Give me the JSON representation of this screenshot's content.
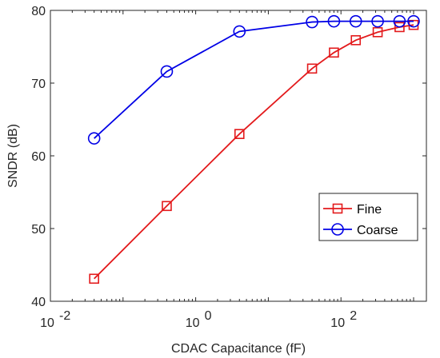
{
  "chart_data": {
    "type": "line",
    "title": "",
    "xlabel": "CDAC Capacitance (fF)",
    "ylabel": "SNDR (dB)",
    "xscale": "log",
    "xlim": [
      0.01,
      1500
    ],
    "ylim": [
      40,
      80
    ],
    "xticks": [
      {
        "value": 0.01,
        "base": "10",
        "exp": "-2"
      },
      {
        "value": 1,
        "base": "10",
        "exp": "0"
      },
      {
        "value": 100,
        "base": "10",
        "exp": "2"
      }
    ],
    "yticks": [
      40,
      50,
      60,
      70,
      80
    ],
    "grid": false,
    "legend_position": "lower-right",
    "series": [
      {
        "name": "Fine",
        "color": "#e31a1c",
        "marker": "square",
        "x": [
          0.04,
          0.4,
          4,
          40,
          80,
          160,
          320,
          640,
          1000
        ],
        "y": [
          43.1,
          53.1,
          63.0,
          72.0,
          74.2,
          75.9,
          77.0,
          77.7,
          78.0
        ]
      },
      {
        "name": "Coarse",
        "color": "#0000e6",
        "marker": "circle",
        "x": [
          0.04,
          0.4,
          4,
          40,
          80,
          160,
          320,
          640,
          1000
        ],
        "y": [
          62.4,
          71.6,
          77.1,
          78.4,
          78.5,
          78.5,
          78.5,
          78.5,
          78.5
        ]
      }
    ]
  }
}
